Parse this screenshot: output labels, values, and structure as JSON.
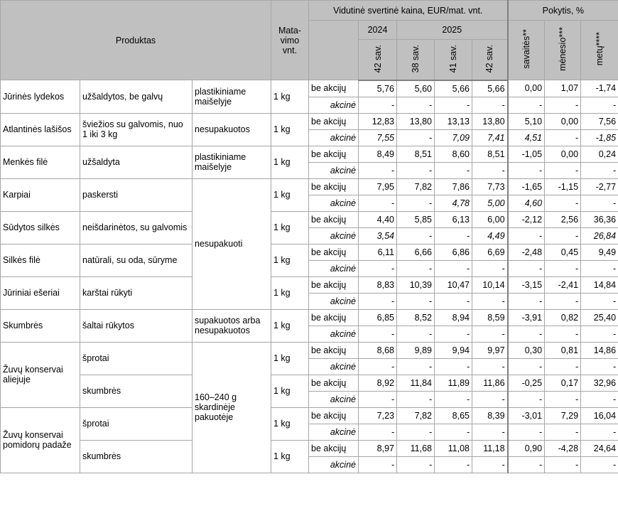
{
  "header": {
    "product": "Produktas",
    "unit": "Mata-vimo vnt.",
    "price": "Vidutinė svertinė kaina, EUR/mat. vnt.",
    "change": "Pokytis, %",
    "y2024": "2024",
    "y2025": "2025",
    "weeks": [
      "42 sav.",
      "38 sav.",
      "41 sav.",
      "42 sav."
    ],
    "changes": [
      "savaitės**",
      "mėnesio***",
      "metų****"
    ]
  },
  "labels": {
    "regular": "be akcijų",
    "promo": "akcinė"
  },
  "rows": [
    {
      "product": "Jūrinės lydekos",
      "desc": "užšaldytos, be galvų",
      "pack": "plastikiniame maišelyje",
      "unit": "1 kg",
      "regular": [
        "5,76",
        "5,60",
        "5,66",
        "5,66",
        "0,00",
        "1,07",
        "-1,74"
      ],
      "promo": [
        "-",
        "-",
        "-",
        "-",
        "-",
        "-",
        "-"
      ]
    },
    {
      "product": "Atlantinės lašišos",
      "desc": "šviežios su galvomis, nuo 1 iki 3 kg",
      "pack": "nesupakuotos",
      "unit": "1 kg",
      "regular": [
        "12,83",
        "13,80",
        "13,13",
        "13,80",
        "5,10",
        "0,00",
        "7,56"
      ],
      "promo": [
        "7,55",
        "-",
        "7,09",
        "7,41",
        "4,51",
        "-",
        "-1,85"
      ]
    },
    {
      "product": "Menkės filė",
      "desc": "užšaldyta",
      "pack": "plastikiniame maišelyje",
      "unit": "1 kg",
      "regular": [
        "8,49",
        "8,51",
        "8,60",
        "8,51",
        "-1,05",
        "0,00",
        "0,24"
      ],
      "promo": [
        "-",
        "-",
        "-",
        "-",
        "-",
        "-",
        "-"
      ]
    },
    {
      "product": "Karpiai",
      "desc": "paskersti",
      "pack": "nesupakuoti",
      "unit": "1 kg",
      "regular": [
        "7,95",
        "7,82",
        "7,86",
        "7,73",
        "-1,65",
        "-1,15",
        "-2,77"
      ],
      "promo": [
        "-",
        "-",
        "4,78",
        "5,00",
        "4,60",
        "-",
        "-"
      ]
    },
    {
      "product": "Sūdytos silkės",
      "desc": "neišdarinėtos, su galvomis",
      "pack": null,
      "unit": "1 kg",
      "regular": [
        "4,40",
        "5,85",
        "6,13",
        "6,00",
        "-2,12",
        "2,56",
        "36,36"
      ],
      "promo": [
        "3,54",
        "-",
        "-",
        "4,49",
        "-",
        "-",
        "26,84"
      ]
    },
    {
      "product": "Silkės filė",
      "desc": "natūrali, su oda, sūryme",
      "pack": null,
      "unit": "1 kg",
      "regular": [
        "6,11",
        "6,66",
        "6,86",
        "6,69",
        "-2,48",
        "0,45",
        "9,49"
      ],
      "promo": [
        "-",
        "-",
        "-",
        "-",
        "-",
        "-",
        "-"
      ]
    },
    {
      "product": "Jūriniai ešeriai",
      "desc": "karštai rūkyti",
      "pack": null,
      "unit": "1 kg",
      "regular": [
        "8,83",
        "10,39",
        "10,47",
        "10,14",
        "-3,15",
        "-2,41",
        "14,84"
      ],
      "promo": [
        "-",
        "-",
        "-",
        "-",
        "-",
        "-",
        "-"
      ]
    },
    {
      "product": "Skumbrės",
      "desc": "šaltai rūkytos",
      "pack": "supakuotos arba nesupakuotos",
      "unit": "1 kg",
      "regular": [
        "6,85",
        "8,52",
        "8,94",
        "8,59",
        "-3,91",
        "0,82",
        "25,40"
      ],
      "promo": [
        "-",
        "-",
        "-",
        "-",
        "-",
        "-",
        "-"
      ]
    },
    {
      "product": "Žuvų konservai aliejuje",
      "desc": "šprotai",
      "pack": "160–240 g skardinėje pakuotėje",
      "unit": "1 kg",
      "regular": [
        "8,68",
        "9,89",
        "9,94",
        "9,97",
        "0,30",
        "0,81",
        "14,86"
      ],
      "promo": [
        "-",
        "-",
        "-",
        "-",
        "-",
        "-",
        "-"
      ]
    },
    {
      "product": null,
      "desc": "skumbrės",
      "pack": null,
      "unit": "1 kg",
      "regular": [
        "8,92",
        "11,84",
        "11,89",
        "11,86",
        "-0,25",
        "0,17",
        "32,96"
      ],
      "promo": [
        "-",
        "-",
        "-",
        "-",
        "-",
        "-",
        "-"
      ]
    },
    {
      "product": "Žuvų konservai pomidorų padaže",
      "desc": "šprotai",
      "pack": null,
      "unit": "1 kg",
      "regular": [
        "7,23",
        "7,82",
        "8,65",
        "8,39",
        "-3,01",
        "7,29",
        "16,04"
      ],
      "promo": [
        "-",
        "-",
        "-",
        "-",
        "-",
        "-",
        "-"
      ]
    },
    {
      "product": null,
      "desc": "skumbrės",
      "pack": null,
      "unit": "1 kg",
      "regular": [
        "8,97",
        "11,68",
        "11,08",
        "11,18",
        "0,90",
        "-4,28",
        "24,64"
      ],
      "promo": [
        "-",
        "-",
        "-",
        "-",
        "-",
        "-",
        "-"
      ]
    }
  ]
}
